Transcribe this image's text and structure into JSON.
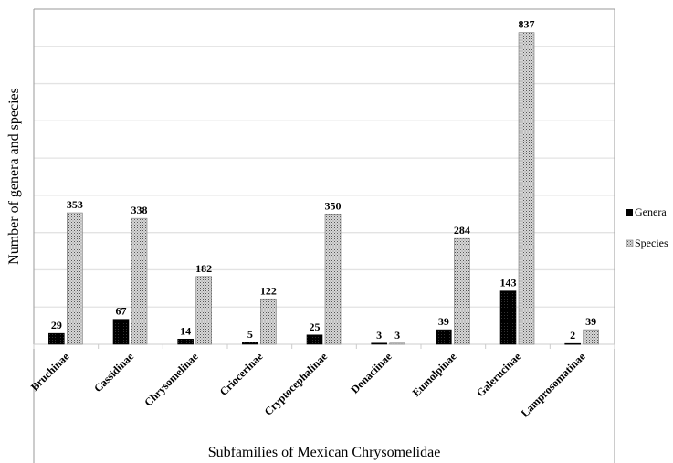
{
  "chart_data": {
    "type": "bar",
    "title": "",
    "xlabel": "Subfamilies of Mexican Chrysomelidae",
    "ylabel": "Number of genera and species",
    "ylim": [
      0,
      900
    ],
    "ytick_step": 100,
    "grid": true,
    "legend_position": "right",
    "categories": [
      "Bruchinae",
      "Cassidinae",
      "Chrysomelinae",
      "Criocerinae",
      "Cryptocephalinae",
      "Donaciinae",
      "Eumolpinae",
      "Galerucinae",
      "Lamprosomatinae"
    ],
    "series": [
      {
        "name": "Genera",
        "color": "#111111",
        "values": [
          29,
          67,
          14,
          5,
          25,
          3,
          39,
          143,
          2
        ]
      },
      {
        "name": "Species",
        "color": "#bdbdbd",
        "values": [
          353,
          338,
          182,
          122,
          350,
          3,
          284,
          837,
          39
        ]
      }
    ]
  }
}
